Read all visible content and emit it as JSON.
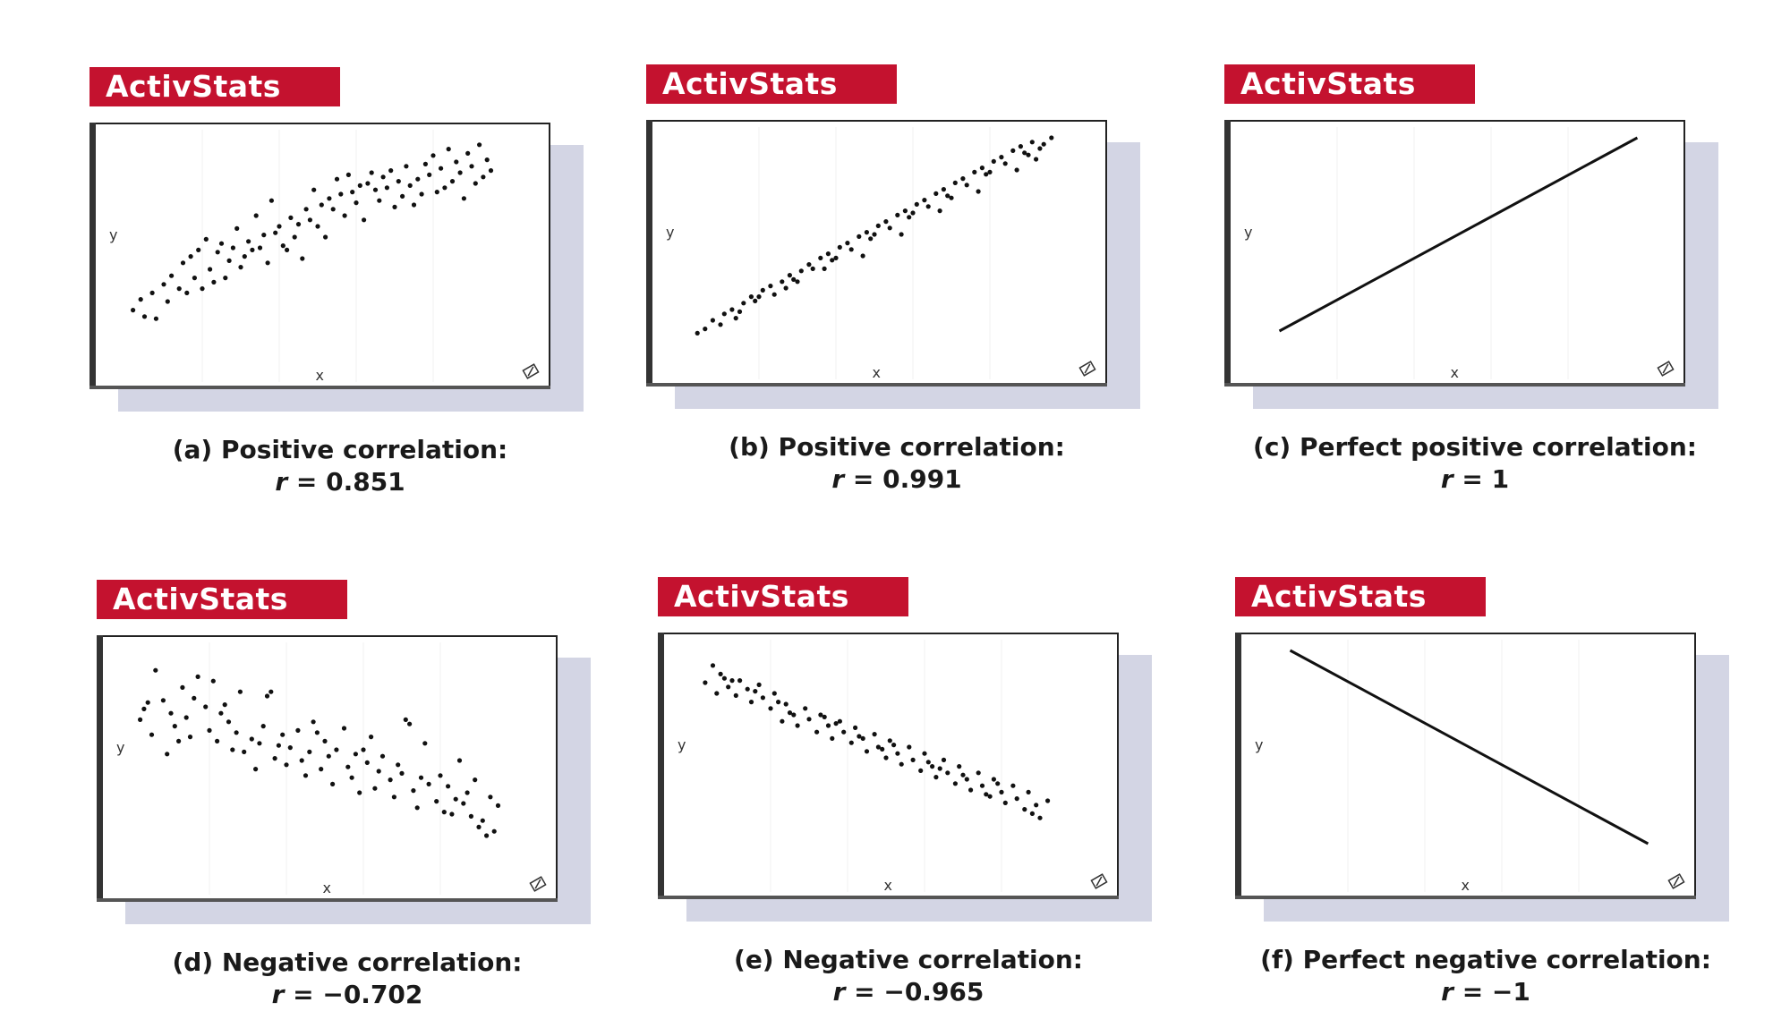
{
  "brand_color": "#c4122f",
  "badge_text": "ActivStats",
  "axis_x_label": "x",
  "axis_y_label": "y",
  "chart_data": [
    {
      "type": "scatter",
      "id": "a",
      "caption": "(a) Positive correlation:",
      "r_label": "r",
      "r_value": "= 0.851",
      "r": 0.851,
      "xlabel": "x",
      "ylabel": "y",
      "xlim": [
        0,
        10
      ],
      "ylim": [
        0,
        10
      ],
      "x": [
        0.2,
        0.4,
        0.5,
        0.7,
        0.8,
        1.0,
        1.1,
        1.2,
        1.4,
        1.5,
        1.6,
        1.7,
        1.8,
        1.9,
        2.0,
        2.1,
        2.2,
        2.3,
        2.4,
        2.5,
        2.6,
        2.7,
        2.8,
        2.9,
        3.0,
        3.1,
        3.2,
        3.3,
        3.4,
        3.5,
        3.6,
        3.7,
        3.8,
        3.9,
        4.0,
        4.1,
        4.2,
        4.3,
        4.4,
        4.5,
        4.6,
        4.7,
        4.8,
        4.9,
        5.0,
        5.1,
        5.2,
        5.3,
        5.4,
        5.5,
        5.6,
        5.7,
        5.8,
        5.9,
        6.0,
        6.1,
        6.2,
        6.3,
        6.4,
        6.5,
        6.6,
        6.7,
        6.8,
        6.9,
        7.0,
        7.1,
        7.2,
        7.3,
        7.4,
        7.5,
        7.6,
        7.7,
        7.8,
        7.9,
        8.0,
        8.1,
        8.2,
        8.3,
        8.4,
        8.5,
        8.6,
        8.7,
        8.8,
        8.9,
        9.0,
        9.1,
        9.2,
        9.3,
        9.4,
        9.5
      ],
      "y": [
        2.1,
        2.6,
        1.8,
        2.9,
        1.7,
        3.3,
        2.5,
        3.7,
        3.1,
        4.3,
        2.9,
        4.6,
        3.6,
        4.9,
        3.1,
        5.4,
        4.0,
        3.4,
        4.8,
        5.2,
        3.6,
        4.4,
        5.0,
        5.9,
        4.1,
        4.6,
        5.3,
        4.9,
        6.5,
        5.0,
        5.6,
        4.3,
        7.2,
        5.7,
        6.0,
        5.1,
        4.9,
        6.4,
        5.5,
        6.1,
        4.5,
        6.8,
        6.3,
        7.7,
        6.0,
        7.0,
        5.5,
        7.3,
        6.8,
        8.2,
        7.5,
        6.5,
        8.4,
        7.6,
        7.1,
        7.9,
        6.3,
        8.0,
        8.5,
        7.7,
        7.2,
        8.3,
        7.8,
        8.6,
        6.9,
        8.1,
        7.4,
        8.8,
        7.9,
        7.0,
        8.2,
        7.5,
        8.9,
        8.4,
        9.3,
        7.6,
        8.7,
        7.8,
        9.6,
        8.1,
        9.0,
        8.5,
        7.3,
        9.4,
        8.8,
        8.0,
        9.8,
        8.3,
        9.1,
        8.6
      ]
    },
    {
      "type": "scatter",
      "id": "b",
      "caption": "(b) Positive correlation:",
      "r_label": "r",
      "r_value": "= 0.991",
      "r": 0.991,
      "xlabel": "x",
      "ylabel": "y",
      "xlim": [
        0,
        10
      ],
      "ylim": [
        0,
        10
      ],
      "x": [
        0.4,
        0.6,
        0.8,
        1.0,
        1.1,
        1.3,
        1.4,
        1.6,
        1.8,
        1.9,
        2.1,
        2.3,
        2.4,
        2.6,
        2.8,
        2.9,
        3.1,
        3.3,
        3.4,
        3.6,
        3.8,
        3.9,
        4.1,
        4.3,
        4.4,
        4.6,
        4.8,
        4.9,
        5.1,
        5.3,
        5.4,
        5.6,
        5.8,
        5.9,
        6.1,
        6.3,
        6.4,
        6.6,
        6.8,
        6.9,
        7.1,
        7.3,
        7.4,
        7.6,
        7.8,
        7.9,
        8.1,
        8.3,
        8.4,
        8.6,
        8.8,
        8.9,
        9.1,
        9.3,
        9.4,
        9.6,
        1.5,
        2.7,
        3.7,
        4.7,
        5.7,
        6.7,
        7.7,
        8.7,
        9.2,
        2.0,
        3.0,
        4.0,
        5.0,
        6.0,
        7.0,
        8.0,
        9.0
      ],
      "y": [
        0.9,
        1.1,
        1.5,
        1.3,
        1.8,
        2.0,
        1.6,
        2.3,
        2.6,
        2.4,
        2.9,
        3.1,
        2.7,
        3.3,
        3.6,
        3.4,
        3.8,
        4.1,
        3.9,
        4.4,
        4.6,
        4.3,
        4.9,
        5.1,
        4.8,
        5.4,
        5.6,
        5.3,
        5.9,
        6.1,
        5.8,
        6.4,
        6.6,
        6.3,
        6.9,
        7.1,
        6.8,
        7.4,
        7.6,
        7.3,
        7.9,
        8.1,
        7.8,
        8.4,
        8.6,
        8.3,
        8.9,
        9.1,
        8.8,
        9.4,
        9.6,
        9.3,
        9.8,
        9.5,
        9.7,
        10.0,
        1.9,
        3.0,
        3.9,
        4.5,
        5.5,
        6.6,
        7.5,
        8.5,
        9.0,
        2.6,
        3.3,
        4.4,
        5.5,
        6.5,
        7.2,
        8.4,
        9.2
      ]
    },
    {
      "type": "line",
      "id": "c",
      "caption": "(c) Perfect positive correlation:",
      "r_label": "r",
      "r_value": "= 1",
      "r": 1,
      "xlabel": "x",
      "ylabel": "y",
      "xlim": [
        0,
        10
      ],
      "ylim": [
        0,
        10
      ],
      "x": [
        0.5,
        9.8
      ],
      "y": [
        1.0,
        10.0
      ]
    },
    {
      "type": "scatter",
      "id": "d",
      "caption": "(d) Negative correlation:",
      "r_label": "r",
      "r_value": "= −0.702",
      "r": -0.702,
      "xlabel": "x",
      "ylabel": "y",
      "xlim": [
        0,
        10
      ],
      "ylim": [
        0,
        10
      ],
      "x": [
        0.2,
        0.3,
        0.5,
        0.6,
        0.8,
        0.9,
        1.0,
        1.1,
        1.3,
        1.4,
        1.5,
        1.6,
        1.7,
        1.9,
        2.0,
        2.1,
        2.2,
        2.3,
        2.5,
        2.6,
        2.7,
        2.8,
        2.9,
        3.1,
        3.2,
        3.3,
        3.4,
        3.5,
        3.7,
        3.8,
        3.9,
        4.0,
        4.1,
        4.3,
        4.4,
        4.5,
        4.6,
        4.7,
        4.9,
        5.0,
        5.1,
        5.2,
        5.3,
        5.5,
        5.6,
        5.7,
        5.8,
        5.9,
        6.1,
        6.2,
        6.3,
        6.4,
        6.5,
        6.7,
        6.8,
        6.9,
        7.0,
        7.1,
        7.3,
        7.4,
        7.5,
        7.6,
        7.7,
        7.9,
        8.0,
        8.1,
        8.2,
        8.3,
        8.5,
        8.6,
        8.7,
        8.8,
        8.9,
        9.1,
        9.2,
        9.3,
        9.4,
        9.5,
        0.4,
        1.2,
        2.4,
        3.6,
        4.8,
        6.0,
        7.2,
        8.4,
        9.0
      ],
      "y": [
        6.9,
        7.4,
        6.2,
        9.2,
        7.8,
        5.3,
        7.2,
        6.6,
        8.4,
        7.0,
        6.1,
        7.9,
        8.9,
        7.5,
        6.4,
        8.7,
        5.9,
        7.2,
        6.8,
        5.5,
        6.3,
        8.2,
        5.4,
        6.0,
        4.6,
        5.8,
        6.6,
        8.0,
        5.1,
        5.7,
        6.2,
        4.8,
        5.6,
        6.4,
        5.0,
        4.3,
        5.4,
        6.8,
        4.6,
        5.9,
        5.2,
        3.9,
        5.5,
        6.5,
        4.7,
        4.2,
        5.3,
        3.5,
        4.9,
        6.1,
        3.7,
        4.5,
        5.2,
        4.1,
        3.3,
        4.8,
        4.4,
        6.9,
        3.6,
        2.8,
        4.2,
        5.8,
        3.9,
        3.1,
        4.3,
        2.6,
        3.8,
        2.5,
        5.0,
        3.0,
        3.5,
        2.4,
        4.1,
        2.2,
        1.5,
        3.3,
        1.7,
        2.9,
        7.7,
        5.9,
        7.6,
        8.2,
        6.3,
        5.5,
        6.7,
        3.2,
        1.9
      ]
    },
    {
      "type": "scatter",
      "id": "e",
      "caption": "(e) Negative correlation:",
      "r_label": "r",
      "r_value": "= −0.965",
      "r": -0.965,
      "xlabel": "x",
      "ylabel": "y",
      "xlim": [
        0,
        10
      ],
      "ylim": [
        0,
        10
      ],
      "x": [
        0.3,
        0.5,
        0.6,
        0.8,
        0.9,
        1.1,
        1.2,
        1.4,
        1.5,
        1.7,
        1.8,
        2.0,
        2.1,
        2.3,
        2.4,
        2.6,
        2.7,
        2.9,
        3.0,
        3.2,
        3.3,
        3.5,
        3.6,
        3.8,
        3.9,
        4.1,
        4.2,
        4.4,
        4.5,
        4.7,
        4.8,
        5.0,
        5.1,
        5.3,
        5.4,
        5.6,
        5.7,
        5.9,
        6.0,
        6.2,
        6.3,
        6.5,
        6.6,
        6.8,
        6.9,
        7.1,
        7.2,
        7.4,
        7.5,
        7.7,
        7.8,
        8.0,
        8.1,
        8.3,
        8.4,
        8.6,
        8.7,
        8.9,
        9.0,
        9.2,
        0.7,
        1.6,
        2.5,
        3.4,
        4.3,
        5.2,
        6.1,
        7.0,
        7.9,
        8.8,
        1.0,
        2.2,
        3.7,
        4.9,
        6.4,
        7.6
      ],
      "y": [
        8.5,
        9.3,
        8.0,
        8.7,
        8.3,
        7.9,
        8.6,
        8.2,
        7.6,
        8.4,
        7.8,
        7.3,
        8.0,
        6.7,
        7.5,
        7.0,
        6.5,
        7.3,
        6.8,
        6.2,
        7.0,
        6.5,
        5.9,
        6.7,
        6.2,
        5.7,
        6.4,
        5.9,
        5.3,
        6.1,
        5.5,
        5.0,
        5.8,
        5.2,
        4.7,
        5.5,
        4.9,
        4.4,
        5.2,
        4.6,
        4.1,
        4.9,
        4.3,
        3.8,
        4.6,
        4.0,
        3.5,
        4.3,
        3.7,
        3.2,
        4.0,
        3.4,
        2.9,
        3.7,
        3.1,
        2.6,
        3.4,
        2.8,
        2.2,
        3.0,
        8.9,
        8.1,
        7.1,
        6.9,
        6.0,
        5.6,
        4.8,
        4.2,
        3.8,
        2.4,
        8.6,
        7.6,
        6.6,
        5.4,
        4.5,
        3.3
      ]
    },
    {
      "type": "line",
      "id": "f",
      "caption": "(f) Perfect negative correlation:",
      "r_label": "r",
      "r_value": "= −1",
      "r": -1,
      "xlabel": "x",
      "ylabel": "y",
      "xlim": [
        0,
        10
      ],
      "ylim": [
        0,
        10
      ],
      "x": [
        0.5,
        9.8
      ],
      "y": [
        10.0,
        1.0
      ]
    }
  ]
}
